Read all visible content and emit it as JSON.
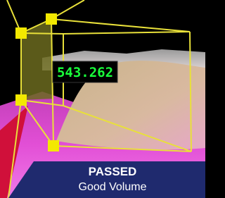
{
  "measurement": {
    "value": "543.262"
  },
  "status": {
    "result": "PASSED",
    "description": "Good Volume"
  }
}
